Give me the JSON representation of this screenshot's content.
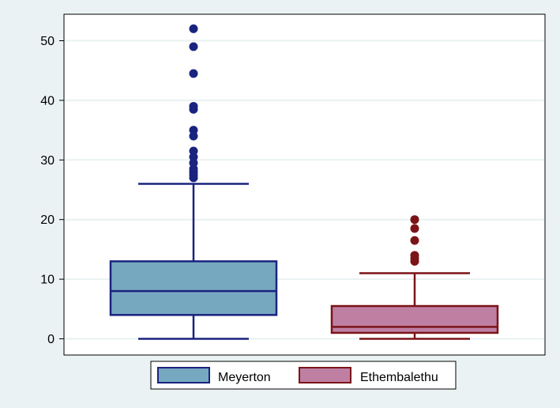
{
  "chart_data": {
    "type": "boxplot",
    "title": "",
    "xlabel": "",
    "ylabel": "",
    "ylim": [
      -3,
      55
    ],
    "yticks": [
      0,
      10,
      20,
      30,
      40,
      50
    ],
    "grid": true,
    "legend_position": "bottom",
    "series": [
      {
        "name": "Meyerton",
        "fill": "#76a8c0",
        "stroke": "#1a237e",
        "min": 0,
        "q1": 4,
        "median": 8,
        "q3": 13,
        "max": 26,
        "outliers": [
          27,
          27.5,
          28,
          28.5,
          29.5,
          30.5,
          31.5,
          34,
          35,
          38.5,
          39,
          44.5,
          49,
          52
        ]
      },
      {
        "name": "Ethembalethu",
        "fill": "#be7fa3",
        "stroke": "#7b1418",
        "min": 0,
        "q1": 1,
        "median": 2,
        "q3": 5.5,
        "max": 11,
        "outliers": [
          13,
          13.5,
          14,
          16.5,
          18.5,
          20
        ]
      }
    ]
  },
  "colors": {
    "page_background": "#eaf2f3",
    "plot_background": "#ffffff",
    "gridline": "#e9f1f2"
  }
}
